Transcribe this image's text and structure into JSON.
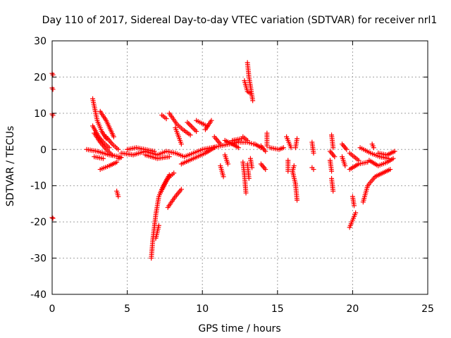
{
  "chart_data": {
    "type": "scatter",
    "title": "Day 110 of 2017, Sidereal Day-to-day VTEC variation (SDTVAR) for receiver nrl1",
    "xlabel": "GPS time / hours",
    "ylabel": "SDTVAR / TECUs",
    "xlim": [
      0,
      25
    ],
    "ylim": [
      -40,
      30
    ],
    "xticks": [
      0,
      5,
      10,
      15,
      20,
      25
    ],
    "yticks": [
      -40,
      -30,
      -20,
      -10,
      0,
      10,
      20,
      30
    ],
    "grid": true,
    "marker": "+",
    "color": "#ff0000",
    "series": [
      {
        "name": "SDTVAR",
        "segments": [
          [
            [
              0.0,
              21.0
            ],
            [
              0.05,
              20.6
            ]
          ],
          [
            [
              0.0,
              17.0
            ],
            [
              0.05,
              16.6
            ]
          ],
          [
            [
              0.0,
              9.8
            ],
            [
              0.05,
              9.4
            ]
          ],
          [
            [
              0.0,
              -18.8
            ],
            [
              0.05,
              -19.0
            ]
          ],
          [
            [
              2.7,
              14.0
            ],
            [
              3.0,
              8.0
            ],
            [
              3.3,
              5.0
            ],
            [
              3.6,
              3.0
            ]
          ],
          [
            [
              2.7,
              6.5
            ],
            [
              3.1,
              3.5
            ],
            [
              3.4,
              2.0
            ],
            [
              3.8,
              0.5
            ]
          ],
          [
            [
              2.8,
              4.5
            ],
            [
              3.2,
              2.0
            ],
            [
              3.6,
              0.0
            ],
            [
              4.0,
              -1.5
            ]
          ],
          [
            [
              3.2,
              10.5
            ],
            [
              3.6,
              8.0
            ],
            [
              4.1,
              3.5
            ]
          ],
          [
            [
              3.6,
              3.5
            ],
            [
              4.0,
              1.5
            ],
            [
              4.4,
              0.0
            ]
          ],
          [
            [
              2.3,
              0.0
            ],
            [
              3.0,
              -0.5
            ],
            [
              3.8,
              -1.5
            ],
            [
              4.5,
              -2.0
            ]
          ],
          [
            [
              3.2,
              -5.5
            ],
            [
              3.8,
              -4.5
            ],
            [
              4.3,
              -3.5
            ]
          ],
          [
            [
              2.8,
              -2.0
            ],
            [
              3.4,
              -2.5
            ]
          ],
          [
            [
              4.3,
              -11.5
            ],
            [
              4.4,
              -13.0
            ]
          ],
          [
            [
              4.4,
              -2.5
            ],
            [
              4.6,
              -2.2
            ]
          ],
          [
            [
              4.6,
              -1.0
            ],
            [
              5.4,
              -1.5
            ],
            [
              6.2,
              -0.5
            ],
            [
              7.0,
              -1.5
            ],
            [
              7.6,
              -0.5
            ],
            [
              8.2,
              -1.0
            ],
            [
              8.8,
              -2.0
            ],
            [
              9.4,
              -1.0
            ],
            [
              10.0,
              0.0
            ],
            [
              10.6,
              0.5
            ],
            [
              11.2,
              1.0
            ],
            [
              11.8,
              1.5
            ],
            [
              12.4,
              2.0
            ],
            [
              13.0,
              2.0
            ],
            [
              13.4,
              1.5
            ]
          ],
          [
            [
              5.0,
              0.0
            ],
            [
              5.6,
              0.5
            ],
            [
              6.2,
              0.0
            ],
            [
              6.8,
              -0.5
            ]
          ],
          [
            [
              6.2,
              -1.5
            ],
            [
              7.0,
              -2.5
            ],
            [
              7.8,
              -2.0
            ]
          ],
          [
            [
              6.6,
              -30.0
            ],
            [
              6.7,
              -25.0
            ],
            [
              6.9,
              -18.0
            ],
            [
              7.1,
              -13.0
            ],
            [
              7.4,
              -10.0
            ],
            [
              7.8,
              -7.0
            ]
          ],
          [
            [
              6.9,
              -24.5
            ],
            [
              7.1,
              -21.0
            ]
          ],
          [
            [
              7.2,
              -12.0
            ],
            [
              7.7,
              -8.0
            ],
            [
              8.1,
              -6.5
            ]
          ],
          [
            [
              7.7,
              -16.0
            ],
            [
              8.2,
              -13.0
            ],
            [
              8.6,
              -11.0
            ]
          ],
          [
            [
              7.3,
              9.5
            ],
            [
              7.6,
              8.5
            ]
          ],
          [
            [
              7.8,
              10.0
            ],
            [
              8.3,
              7.0
            ],
            [
              8.7,
              5.5
            ],
            [
              9.2,
              4.0
            ]
          ],
          [
            [
              8.2,
              6.0
            ],
            [
              8.6,
              1.5
            ]
          ],
          [
            [
              8.6,
              -4.0
            ],
            [
              9.4,
              -2.5
            ],
            [
              10.2,
              -1.0
            ],
            [
              10.8,
              0.5
            ]
          ],
          [
            [
              9.0,
              7.5
            ],
            [
              9.6,
              5.0
            ]
          ],
          [
            [
              9.6,
              8.0
            ],
            [
              10.3,
              6.5
            ]
          ],
          [
            [
              10.6,
              8.0
            ],
            [
              10.2,
              5.5
            ]
          ],
          [
            [
              10.8,
              3.5
            ],
            [
              11.2,
              1.5
            ]
          ],
          [
            [
              11.2,
              -4.5
            ],
            [
              11.4,
              -7.5
            ]
          ],
          [
            [
              11.7,
              -4.0
            ],
            [
              11.5,
              -1.5
            ]
          ],
          [
            [
              11.5,
              2.5
            ],
            [
              12.0,
              1.5
            ],
            [
              12.4,
              0.5
            ]
          ],
          [
            [
              12.0,
              2.5
            ],
            [
              12.6,
              3.0
            ]
          ],
          [
            [
              12.7,
              3.5
            ],
            [
              13.0,
              2.5
            ]
          ],
          [
            [
              13.0,
              24.0
            ],
            [
              13.1,
              20.0
            ],
            [
              13.2,
              17.5
            ],
            [
              13.35,
              13.5
            ]
          ],
          [
            [
              12.8,
              19.0
            ],
            [
              13.0,
              16.0
            ],
            [
              13.2,
              15.5
            ]
          ],
          [
            [
              12.7,
              -3.5
            ],
            [
              12.8,
              -7.0
            ],
            [
              12.9,
              -12.0
            ]
          ],
          [
            [
              13.0,
              -4.0
            ],
            [
              13.1,
              -8.0
            ]
          ],
          [
            [
              13.2,
              -2.5
            ],
            [
              13.3,
              -5.0
            ]
          ],
          [
            [
              13.5,
              1.5
            ],
            [
              13.9,
              0.5
            ]
          ],
          [
            [
              13.9,
              1.0
            ],
            [
              14.2,
              -0.5
            ]
          ],
          [
            [
              13.9,
              -4.0
            ],
            [
              14.2,
              -5.5
            ]
          ],
          [
            [
              14.3,
              4.5
            ],
            [
              14.3,
              1.0
            ]
          ],
          [
            [
              14.5,
              0.5
            ],
            [
              15.1,
              0.0
            ],
            [
              15.4,
              0.5
            ]
          ],
          [
            [
              15.6,
              3.5
            ],
            [
              15.9,
              0.5
            ]
          ],
          [
            [
              15.7,
              -3.0
            ],
            [
              15.7,
              -6.0
            ]
          ],
          [
            [
              16.0,
              -6.0
            ],
            [
              16.2,
              -9.5
            ]
          ],
          [
            [
              16.1,
              -4.5
            ],
            [
              16.0,
              -6.0
            ]
          ],
          [
            [
              16.3,
              3.0
            ],
            [
              16.2,
              0.5
            ]
          ],
          [
            [
              16.2,
              -9.5
            ],
            [
              16.3,
              -14.0
            ]
          ],
          [
            [
              17.3,
              2.0
            ],
            [
              17.4,
              -1.0
            ]
          ],
          [
            [
              17.3,
              -5.0
            ],
            [
              17.4,
              -5.5
            ]
          ],
          [
            [
              18.5,
              -3.0
            ],
            [
              18.6,
              -6.0
            ]
          ],
          [
            [
              18.6,
              -8.0
            ],
            [
              18.7,
              -11.5
            ]
          ],
          [
            [
              18.6,
              4.0
            ],
            [
              18.7,
              0.5
            ]
          ],
          [
            [
              18.5,
              -0.5
            ],
            [
              18.8,
              -2.0
            ]
          ],
          [
            [
              19.3,
              -2.0
            ],
            [
              19.5,
              -4.5
            ]
          ],
          [
            [
              19.3,
              1.5
            ],
            [
              19.6,
              0.0
            ]
          ],
          [
            [
              19.8,
              -21.5
            ],
            [
              20.0,
              -19.5
            ],
            [
              20.2,
              -17.5
            ]
          ],
          [
            [
              20.0,
              -13.0
            ],
            [
              20.1,
              -15.5
            ]
          ],
          [
            [
              19.8,
              -1.0
            ],
            [
              20.4,
              -3.0
            ]
          ],
          [
            [
              19.8,
              -5.5
            ],
            [
              20.4,
              -4.0
            ],
            [
              21.0,
              -3.5
            ]
          ],
          [
            [
              20.5,
              0.5
            ],
            [
              21.2,
              -1.0
            ],
            [
              21.8,
              -2.0
            ],
            [
              22.4,
              -2.5
            ]
          ],
          [
            [
              20.7,
              -14.5
            ],
            [
              21.0,
              -10.0
            ],
            [
              21.5,
              -7.5
            ],
            [
              22.0,
              -6.5
            ],
            [
              22.5,
              -5.5
            ]
          ],
          [
            [
              21.1,
              -3.0
            ],
            [
              21.7,
              -4.5
            ],
            [
              22.3,
              -3.5
            ],
            [
              22.7,
              -2.5
            ]
          ],
          [
            [
              21.3,
              1.5
            ],
            [
              21.4,
              0.5
            ]
          ],
          [
            [
              21.7,
              -1.0
            ],
            [
              22.3,
              -1.5
            ],
            [
              22.8,
              -0.5
            ]
          ]
        ]
      }
    ]
  }
}
